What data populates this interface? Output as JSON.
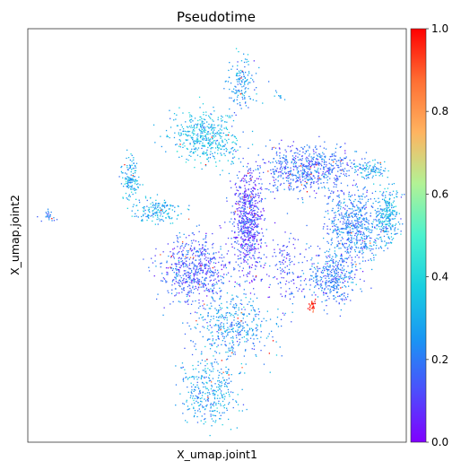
{
  "chart_data": {
    "type": "scatter",
    "title": "Pseudotime",
    "xlabel": "X_umap.joint1",
    "ylabel": "X_umap.joint2",
    "xlim": [
      0,
      100
    ],
    "ylim": [
      0,
      100
    ],
    "grid": false,
    "colorbar": {
      "label": "",
      "range": [
        0,
        1
      ],
      "ticks": [
        {
          "value": 0.0,
          "label": "0.0"
        },
        {
          "value": 0.2,
          "label": "0.2"
        },
        {
          "value": 0.4,
          "label": "0.4"
        },
        {
          "value": 0.6,
          "label": "0.6"
        },
        {
          "value": 0.8,
          "label": "0.8"
        },
        {
          "value": 1.0,
          "label": "1.0"
        }
      ],
      "colormap": "rainbow"
    },
    "clusters": [
      {
        "name": "top-arc",
        "x": 56.5,
        "y": 86,
        "sx": 1.8,
        "sy": 3.5,
        "n": 150,
        "v": 0.25
      },
      {
        "name": "top-right-blob",
        "x": 66.5,
        "y": 84,
        "sx": 0.6,
        "sy": 0.6,
        "n": 10,
        "v": 0.25
      },
      {
        "name": "upper-left-ring",
        "x": 46.5,
        "y": 74,
        "sx": 4.2,
        "sy": 3.3,
        "n": 450,
        "v": 0.33
      },
      {
        "name": "left-arm",
        "x": 27,
        "y": 64,
        "sx": 1.2,
        "sy": 2.5,
        "n": 140,
        "v": 0.3
      },
      {
        "name": "left-arm-lower",
        "x": 34,
        "y": 56,
        "sx": 3.0,
        "sy": 1.5,
        "n": 160,
        "v": 0.3
      },
      {
        "name": "far-left-islet",
        "x": 5.5,
        "y": 55,
        "sx": 0.7,
        "sy": 1.0,
        "n": 25,
        "v": 0.22
      },
      {
        "name": "central-diagonal",
        "x": 58,
        "y": 53,
        "sx": 2.0,
        "sy": 6.5,
        "n": 700,
        "v": 0.12
      },
      {
        "name": "upper-middle-band",
        "x": 74,
        "y": 66,
        "sx": 6.5,
        "sy": 3.0,
        "n": 650,
        "v": 0.18
      },
      {
        "name": "right-loop",
        "x": 86,
        "y": 52,
        "sx": 3.8,
        "sy": 4.5,
        "n": 600,
        "v": 0.22
      },
      {
        "name": "right-edge",
        "x": 95,
        "y": 55,
        "sx": 1.6,
        "sy": 3.5,
        "n": 250,
        "v": 0.3
      },
      {
        "name": "top-right-corner",
        "x": 91,
        "y": 66,
        "sx": 2.0,
        "sy": 1.2,
        "n": 90,
        "v": 0.3
      },
      {
        "name": "lower-middle",
        "x": 80,
        "y": 40,
        "sx": 3.0,
        "sy": 3.0,
        "n": 350,
        "v": 0.2
      },
      {
        "name": "central-left",
        "x": 44,
        "y": 42,
        "sx": 4.5,
        "sy": 4.0,
        "n": 600,
        "v": 0.15
      },
      {
        "name": "lower-stem",
        "x": 54,
        "y": 28,
        "sx": 5.0,
        "sy": 4.0,
        "n": 400,
        "v": 0.25
      },
      {
        "name": "bottom-tip",
        "x": 48,
        "y": 13,
        "sx": 4.0,
        "sy": 4.5,
        "n": 350,
        "v": 0.28
      },
      {
        "name": "middle-sparse",
        "x": 69,
        "y": 42,
        "sx": 3.5,
        "sy": 4.5,
        "n": 150,
        "v": 0.15
      },
      {
        "name": "red-spot",
        "x": 75,
        "y": 33,
        "sx": 0.5,
        "sy": 0.8,
        "n": 30,
        "v": 0.97
      }
    ]
  }
}
